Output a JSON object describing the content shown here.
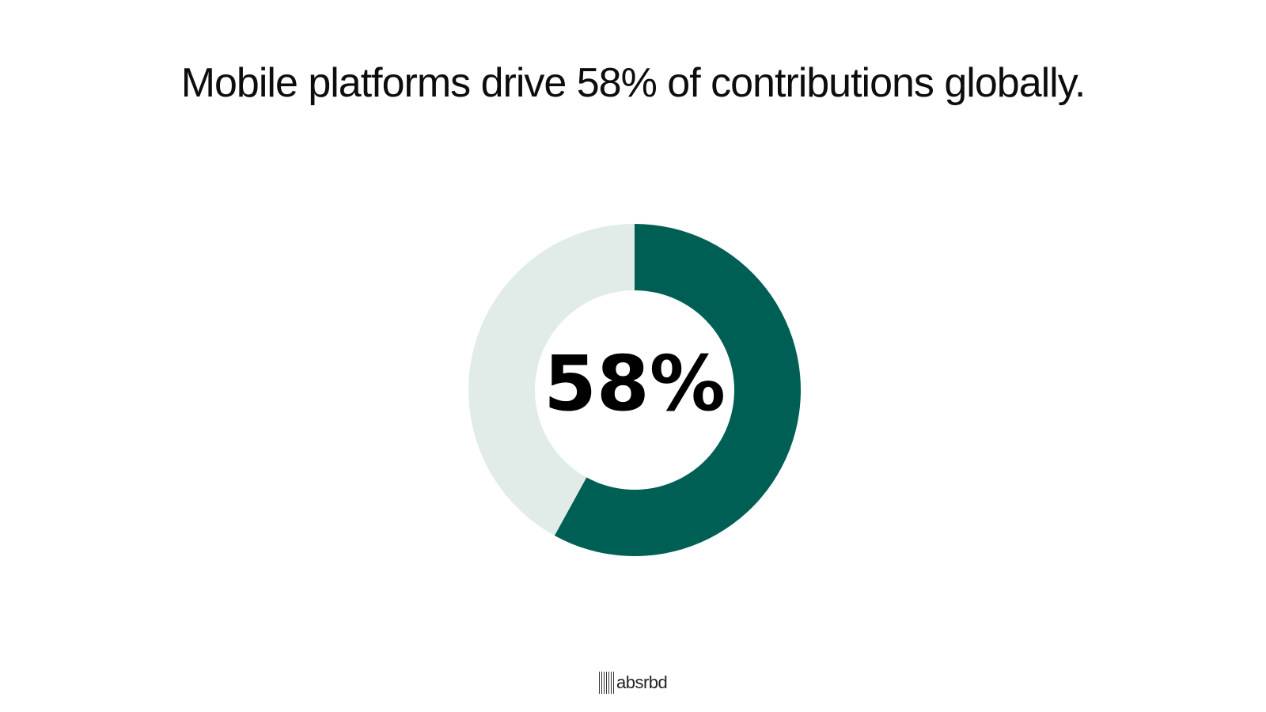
{
  "slide": {
    "title": "Mobile platforms drive 58% of contributions globally."
  },
  "chart_data": {
    "type": "pie",
    "variant": "donut",
    "title": "",
    "values": [
      58,
      42
    ],
    "colors": [
      "#005f54",
      "#e1ece9"
    ],
    "center_label": "58%"
  },
  "footer": {
    "logo_text": "absrbd"
  }
}
